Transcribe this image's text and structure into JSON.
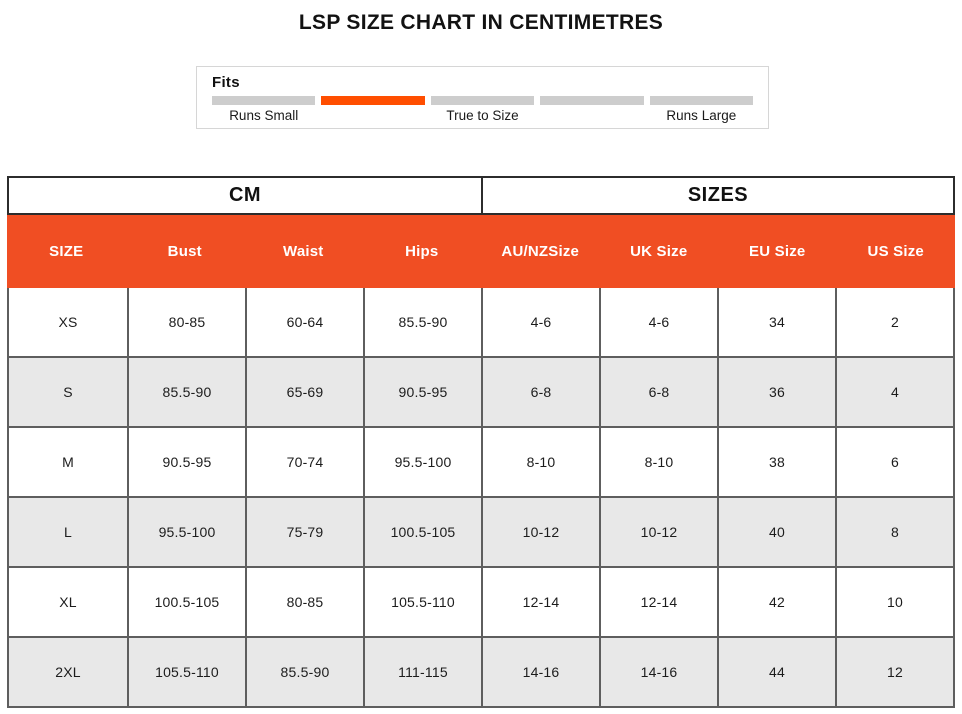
{
  "fit_indicator": {
    "label": "Fits",
    "segment_count": 5,
    "active_index": 1,
    "active_color": "#FF4E00",
    "inactive_color": "#CDCDCD",
    "slot_labels": [
      "Runs Small",
      "",
      "True to Size",
      "",
      "Runs Large"
    ]
  },
  "chart_data": {
    "type": "table",
    "title": "LSP SIZE CHART IN CENTIMETRES",
    "column_groups": [
      {
        "label": "CM",
        "span": 4
      },
      {
        "label": "SIZES",
        "span": 4
      }
    ],
    "columns": [
      "SIZE",
      "Bust",
      "Waist",
      "Hips",
      "AU/NZSize",
      "UK Size",
      "EU Size",
      "US Size"
    ],
    "rows": [
      [
        "XS",
        "80-85",
        "60-64",
        "85.5-90",
        "4-6",
        "4-6",
        "34",
        "2"
      ],
      [
        "S",
        "85.5-90",
        "65-69",
        "90.5-95",
        "6-8",
        "6-8",
        "36",
        "4"
      ],
      [
        "M",
        "90.5-95",
        "70-74",
        "95.5-100",
        "8-10",
        "8-10",
        "38",
        "6"
      ],
      [
        "L",
        "95.5-100",
        "75-79",
        "100.5-105",
        "10-12",
        "10-12",
        "40",
        "8"
      ],
      [
        "XL",
        "100.5-105",
        "80-85",
        "105.5-110",
        "12-14",
        "12-14",
        "42",
        "10"
      ],
      [
        "2XL",
        "105.5-110",
        "85.5-90",
        "111-115",
        "14-16",
        "14-16",
        "44",
        "12"
      ]
    ],
    "header_bg_color": "#F04E23",
    "header_text_color": "#FFFFFF",
    "alt_row_color": "#E8E8E8"
  }
}
